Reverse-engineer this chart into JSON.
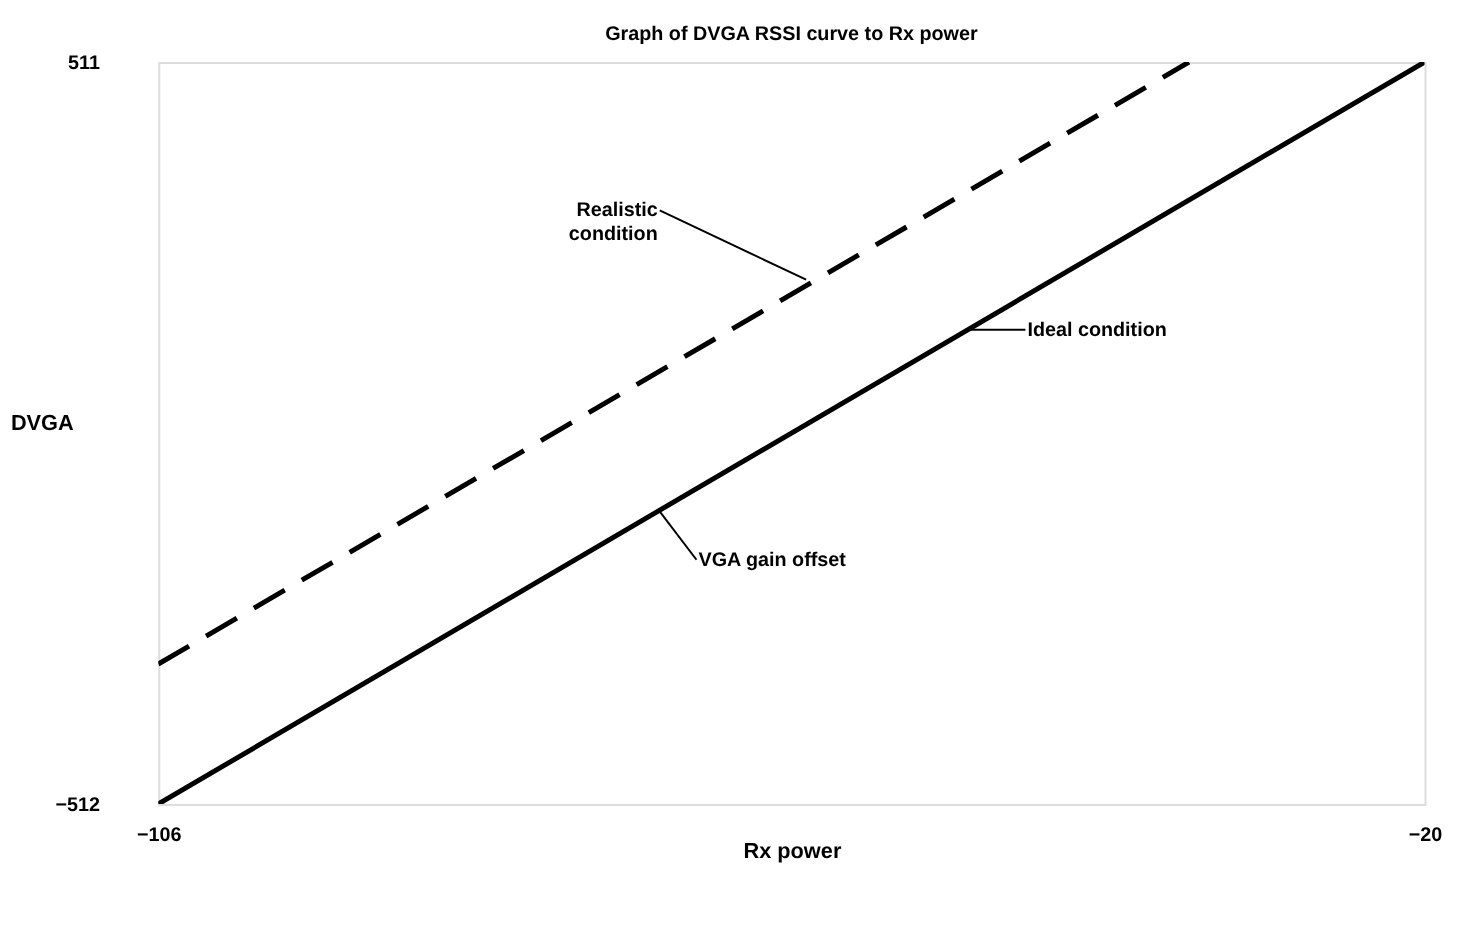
{
  "chart_data": {
    "type": "line",
    "title": "Graph of DVGA RSSI curve to Rx power",
    "xlabel": "Rx power",
    "ylabel": "DVGA",
    "xlim": [
      -106,
      -20
    ],
    "ylim": [
      -512,
      511
    ],
    "xticks": [
      -106,
      -20
    ],
    "yticks": [
      -512,
      511
    ],
    "series": [
      {
        "x": [
          -106,
          -36
        ],
        "values": [
          -319,
          511
        ],
        "color": "#000000",
        "line_style": "dashed"
      },
      {
        "x": [
          -106,
          -20
        ],
        "values": [
          -512,
          511
        ],
        "color": "#000000",
        "line_style": "solid"
      }
    ],
    "annotations": [
      {
        "text": "Realistic condition",
        "x": -62,
        "y": 211
      },
      {
        "text": "Ideal condition",
        "x": -51,
        "y": 142
      },
      {
        "text": "VGA gain offset",
        "x": -72,
        "y": -107
      }
    ]
  }
}
